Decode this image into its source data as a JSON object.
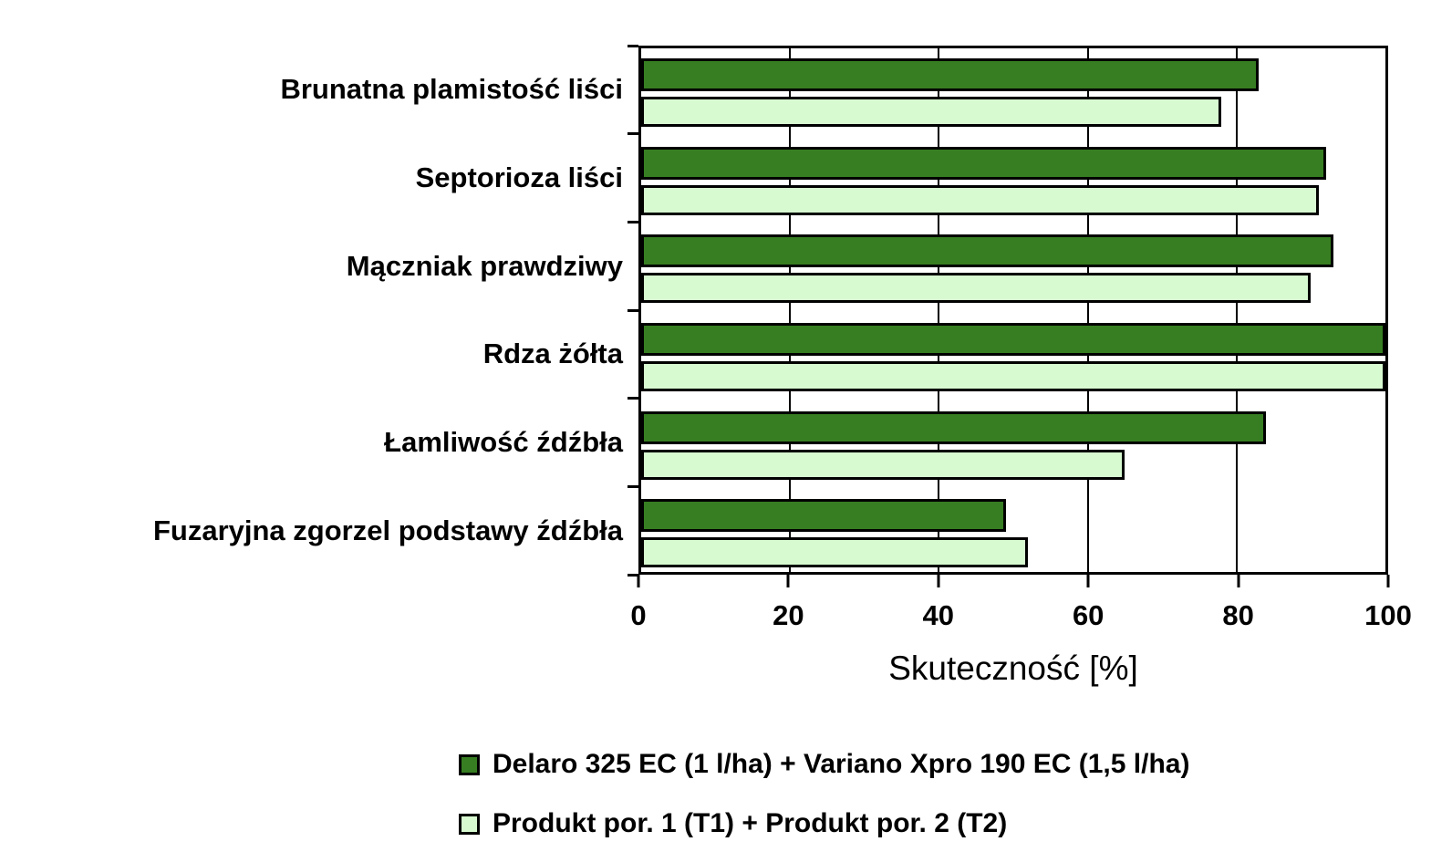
{
  "chart_data": {
    "type": "bar",
    "orientation": "horizontal",
    "title": "",
    "xlabel": "Skuteczność [%]",
    "ylabel": "",
    "xlim": [
      0,
      100
    ],
    "x_ticks": [
      0,
      20,
      40,
      60,
      80,
      100
    ],
    "grid": true,
    "legend_position": "bottom",
    "background_color": "#FFFFFF",
    "axis_color": "#000000",
    "bar_border_color": "#000000",
    "categories": [
      "Brunatna plamistość liści",
      "Septorioza liści",
      "Mączniak prawdziwy",
      "Rdza żółta",
      "Łamliwość źdźbła",
      "Fuzaryjna zgorzel podstawy źdźbła"
    ],
    "series": [
      {
        "name": "Delaro 325 EC (1 l/ha) + Variano Xpro 190 EC (1,5 l/ha)",
        "color": "#377E22",
        "values": [
          83,
          92,
          93,
          100,
          84,
          49
        ]
      },
      {
        "name": "Produkt por. 1 (T1) + Produkt por. 2 (T2)",
        "color": "#D7FAD1",
        "values": [
          78,
          91,
          90,
          100,
          65,
          52
        ]
      }
    ]
  }
}
